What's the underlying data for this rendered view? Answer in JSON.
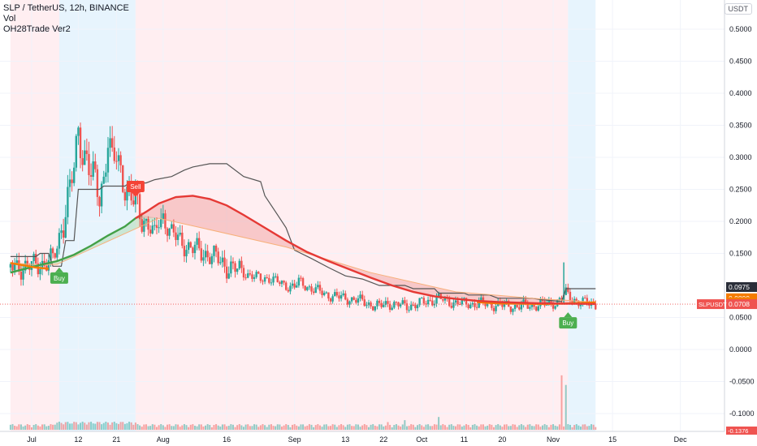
{
  "legend": {
    "symbol_line": "SLP / TetherUS, 12h, BINANCE",
    "vol_label": "Vol",
    "indicator_label": "OH28Trade Ver2"
  },
  "currency_label": "USDT",
  "colors": {
    "up": "#26a69a",
    "down": "#ef5350",
    "bg_red": "#ffebee",
    "bg_blue": "#e3f2fd",
    "green_ma": "#43a047",
    "red_ma": "#e53935",
    "orange_ma": "#f57c00",
    "grey_line": "#555555"
  },
  "chart_data": {
    "type": "candlestick",
    "ylim": [
      -0.13,
      0.53
    ],
    "y_ticks": [
      "0.5000",
      "0.4500",
      "0.4000",
      "0.3500",
      "0.3000",
      "0.2500",
      "0.2000",
      "0.1500",
      "0.0500",
      "0.0000",
      "-0.0500",
      "-0.1000"
    ],
    "y_tick_values": [
      0.5,
      0.45,
      0.4,
      0.35,
      0.3,
      0.25,
      0.2,
      0.15,
      0.05,
      0,
      -0.05,
      -0.1
    ],
    "bottom_cut_label": "-0.1376",
    "x_ticks": [
      {
        "label": "Jul",
        "day": 0
      },
      {
        "label": "12",
        "day": 11
      },
      {
        "label": "21",
        "day": 20
      },
      {
        "label": "Aug",
        "day": 31
      },
      {
        "label": "16",
        "day": 46
      },
      {
        "label": "Sep",
        "day": 62
      },
      {
        "label": "13",
        "day": 74
      },
      {
        "label": "22",
        "day": 83
      },
      {
        "label": "Oct",
        "day": 92
      },
      {
        "label": "11",
        "day": 102
      },
      {
        "label": "20",
        "day": 111
      },
      {
        "label": "Nov",
        "day": 123
      },
      {
        "label": "15",
        "day": 137
      },
      {
        "label": "Dec",
        "day": 153
      }
    ],
    "price_labels": [
      {
        "text": "0.0975",
        "value": 0.0975,
        "color": "#2a2e39"
      },
      {
        "text": "0.0800",
        "value": 0.08,
        "color": "#f57c00"
      },
      {
        "text": "0.0736",
        "value": 0.0736,
        "color": "#f57c00"
      },
      {
        "text": "0.0712",
        "value": 0.0712,
        "color": "#f57c00"
      },
      {
        "text": "0.0708",
        "value": 0.0708,
        "color": "#ef5350"
      }
    ],
    "symbol_tag": {
      "text": "SLPUSDT",
      "value": 0.0708
    },
    "signals": [
      {
        "text": "Buy",
        "type": "buy",
        "day": 6.5,
        "value": 0.128
      },
      {
        "text": "Sell",
        "type": "sell",
        "day": 24.5,
        "value": 0.238
      },
      {
        "text": "Buy",
        "type": "buy",
        "day": 126.5,
        "value": 0.058
      }
    ],
    "regions": [
      {
        "from": -5,
        "to": 6.5,
        "color": "red"
      },
      {
        "from": 6.5,
        "to": 24.5,
        "color": "blue"
      },
      {
        "from": 24.5,
        "to": 126.5,
        "color": "red"
      },
      {
        "from": 126.5,
        "to": 133,
        "color": "blue"
      }
    ],
    "price_path": [
      [
        -5,
        0.128
      ],
      [
        0,
        0.13
      ],
      [
        3,
        0.135
      ],
      [
        5,
        0.14
      ],
      [
        6,
        0.16
      ],
      [
        7,
        0.19
      ],
      [
        8,
        0.22
      ],
      [
        9,
        0.25
      ],
      [
        10,
        0.28
      ],
      [
        11,
        0.34
      ],
      [
        12,
        0.31
      ],
      [
        13,
        0.3
      ],
      [
        14,
        0.27
      ],
      [
        15,
        0.26
      ],
      [
        16,
        0.24
      ],
      [
        17,
        0.27
      ],
      [
        18,
        0.33
      ],
      [
        19,
        0.29
      ],
      [
        20,
        0.3
      ],
      [
        21,
        0.28
      ],
      [
        22,
        0.26
      ],
      [
        23,
        0.24
      ],
      [
        24,
        0.23
      ],
      [
        25,
        0.22
      ],
      [
        26,
        0.21
      ],
      [
        27,
        0.2
      ],
      [
        28,
        0.19
      ],
      [
        29,
        0.175
      ],
      [
        30,
        0.2
      ],
      [
        31,
        0.205
      ],
      [
        32,
        0.195
      ],
      [
        33,
        0.18
      ],
      [
        35,
        0.17
      ],
      [
        37,
        0.16
      ],
      [
        40,
        0.152
      ],
      [
        42,
        0.148
      ],
      [
        44,
        0.14
      ],
      [
        46,
        0.13
      ],
      [
        48,
        0.125
      ],
      [
        50,
        0.12
      ],
      [
        52,
        0.115
      ],
      [
        54,
        0.11
      ],
      [
        56,
        0.112
      ],
      [
        58,
        0.105
      ],
      [
        60,
        0.1
      ],
      [
        62,
        0.098
      ],
      [
        63,
        0.105
      ],
      [
        64,
        0.102
      ],
      [
        66,
        0.095
      ],
      [
        68,
        0.09
      ],
      [
        70,
        0.085
      ],
      [
        72,
        0.082
      ],
      [
        74,
        0.08
      ],
      [
        76,
        0.078
      ],
      [
        78,
        0.075
      ],
      [
        80,
        0.07
      ],
      [
        82,
        0.067
      ],
      [
        84,
        0.072
      ],
      [
        86,
        0.07
      ],
      [
        88,
        0.068
      ],
      [
        90,
        0.069
      ],
      [
        92,
        0.073
      ],
      [
        94,
        0.076
      ],
      [
        96,
        0.08
      ],
      [
        98,
        0.075
      ],
      [
        100,
        0.073
      ],
      [
        102,
        0.072
      ],
      [
        104,
        0.071
      ],
      [
        106,
        0.072
      ],
      [
        108,
        0.07
      ],
      [
        110,
        0.069
      ],
      [
        112,
        0.068
      ],
      [
        114,
        0.067
      ],
      [
        116,
        0.068
      ],
      [
        118,
        0.069
      ],
      [
        120,
        0.07
      ],
      [
        122,
        0.071
      ],
      [
        124,
        0.075
      ],
      [
        125,
        0.08
      ],
      [
        126,
        0.088
      ],
      [
        127,
        0.082
      ],
      [
        128,
        0.078
      ],
      [
        129,
        0.074
      ],
      [
        130,
        0.073
      ],
      [
        131,
        0.072
      ],
      [
        132,
        0.071
      ],
      [
        133,
        0.0708
      ]
    ],
    "green_ma": [
      [
        -5,
        0.12
      ],
      [
        2,
        0.132
      ],
      [
        6,
        0.138
      ],
      [
        10,
        0.148
      ],
      [
        14,
        0.162
      ],
      [
        18,
        0.178
      ],
      [
        22,
        0.192
      ],
      [
        24.5,
        0.205
      ],
      [
        26,
        0.21
      ]
    ],
    "red_ma": [
      [
        24.5,
        0.205
      ],
      [
        27,
        0.215
      ],
      [
        30,
        0.228
      ],
      [
        34,
        0.238
      ],
      [
        38,
        0.24
      ],
      [
        42,
        0.235
      ],
      [
        46,
        0.225
      ],
      [
        50,
        0.21
      ],
      [
        55,
        0.19
      ],
      [
        60,
        0.17
      ],
      [
        65,
        0.152
      ],
      [
        70,
        0.138
      ],
      [
        75,
        0.125
      ],
      [
        80,
        0.112
      ],
      [
        85,
        0.1
      ],
      [
        90,
        0.09
      ],
      [
        95,
        0.083
      ],
      [
        100,
        0.079
      ],
      [
        105,
        0.076
      ],
      [
        110,
        0.074
      ],
      [
        115,
        0.073
      ],
      [
        120,
        0.072
      ],
      [
        126,
        0.0715
      ],
      [
        133,
        0.0712
      ]
    ],
    "orange_ma": [
      [
        -5,
        0.135
      ],
      [
        2,
        0.132
      ],
      [
        6,
        0.133
      ],
      [
        30,
        0.205
      ],
      [
        40,
        0.19
      ],
      [
        60,
        0.16
      ],
      [
        80,
        0.12
      ],
      [
        100,
        0.09
      ],
      [
        120,
        0.079
      ],
      [
        126,
        0.077
      ],
      [
        133,
        0.0736
      ]
    ],
    "orange_ma_right": [
      [
        105,
        0.074
      ],
      [
        110,
        0.072
      ],
      [
        120,
        0.071
      ],
      [
        126,
        0.0716
      ],
      [
        133,
        0.0736
      ]
    ],
    "grey_line": [
      [
        -5,
        0.145
      ],
      [
        1,
        0.145
      ],
      [
        2,
        0.15
      ],
      [
        4,
        0.15
      ],
      [
        5,
        0.13
      ],
      [
        7,
        0.13
      ],
      [
        8,
        0.17
      ],
      [
        10,
        0.17
      ],
      [
        11,
        0.25
      ],
      [
        16,
        0.25
      ],
      [
        17,
        0.255
      ],
      [
        22,
        0.255
      ],
      [
        23,
        0.26
      ],
      [
        27,
        0.26
      ],
      [
        29,
        0.265
      ],
      [
        33,
        0.27
      ],
      [
        36,
        0.28
      ],
      [
        38,
        0.285
      ],
      [
        42,
        0.29
      ],
      [
        46,
        0.29
      ],
      [
        50,
        0.27
      ],
      [
        54,
        0.262
      ],
      [
        55,
        0.24
      ],
      [
        58,
        0.21
      ],
      [
        60,
        0.19
      ],
      [
        62,
        0.155
      ],
      [
        66,
        0.142
      ],
      [
        70,
        0.128
      ],
      [
        74,
        0.115
      ],
      [
        78,
        0.11
      ],
      [
        80,
        0.105
      ],
      [
        82,
        0.1
      ],
      [
        88,
        0.1
      ],
      [
        90,
        0.095
      ],
      [
        95,
        0.095
      ],
      [
        96,
        0.088
      ],
      [
        102,
        0.088
      ],
      [
        103,
        0.085
      ],
      [
        108,
        0.085
      ],
      [
        110,
        0.08
      ],
      [
        118,
        0.08
      ],
      [
        120,
        0.078
      ],
      [
        125,
        0.075
      ],
      [
        126,
        0.095
      ],
      [
        133,
        0.095
      ]
    ],
    "volume_spikes": [
      {
        "day": 125,
        "height": 0.085
      },
      {
        "day": 126,
        "height": 0.07
      },
      {
        "day": 96,
        "height": 0.02
      },
      {
        "day": 88,
        "height": 0.015
      },
      {
        "day": 84,
        "height": 0.012
      }
    ]
  }
}
